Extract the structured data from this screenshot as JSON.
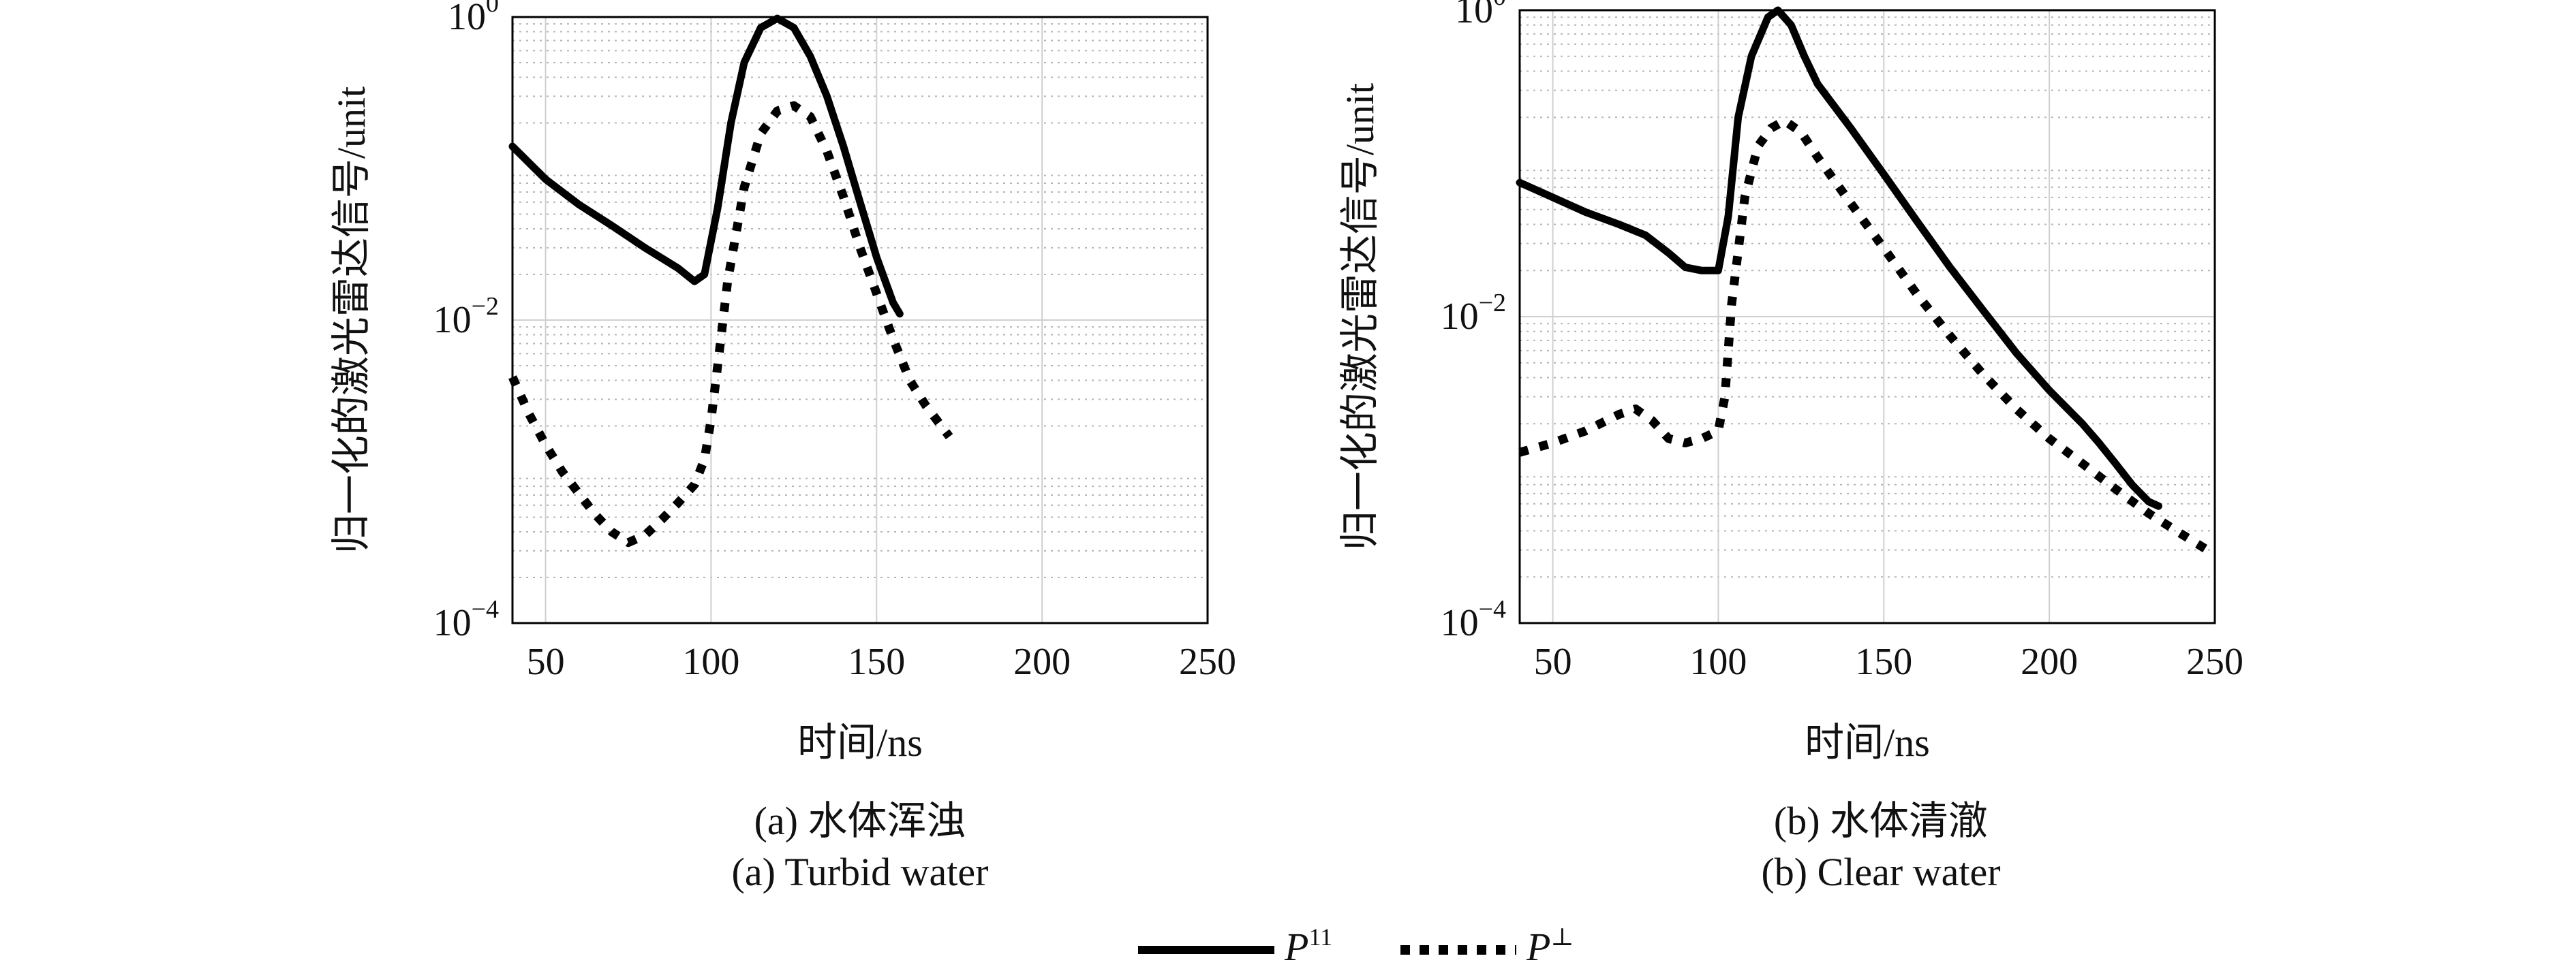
{
  "legend": {
    "entries": [
      {
        "name": "P",
        "sup": "11",
        "style": "solid"
      },
      {
        "name": "P",
        "sup": "⊥",
        "style": "dotted"
      }
    ]
  },
  "chart_data": [
    {
      "type": "line",
      "panel": "a",
      "caption_cn": "(a) 水体浑浊",
      "caption_en": "(a) Turbid water",
      "xlabel": "时间/ns",
      "ylabel": "归一化的激光雷达信号/unit",
      "xlim": [
        40,
        250
      ],
      "ylim_log10": [
        -4,
        0
      ],
      "yscale": "log",
      "grid": true,
      "xticks": [
        50,
        100,
        150,
        200,
        250
      ],
      "yticks": [
        {
          "base": "10",
          "exp": "0",
          "log10": 0
        },
        {
          "base": "10",
          "exp": "−2",
          "log10": -2
        },
        {
          "base": "10",
          "exp": "−4",
          "log10": -4
        }
      ],
      "series": [
        {
          "name": "P11",
          "style": "solid",
          "x": [
            40,
            50,
            60,
            70,
            80,
            90,
            95,
            98,
            102,
            106,
            110,
            115,
            120,
            125,
            130,
            135,
            140,
            145,
            150,
            155,
            157
          ],
          "y": [
            0.14,
            0.085,
            0.058,
            0.042,
            0.03,
            0.022,
            0.018,
            0.02,
            0.055,
            0.2,
            0.5,
            0.85,
            0.98,
            0.85,
            0.55,
            0.3,
            0.14,
            0.06,
            0.026,
            0.013,
            0.011
          ]
        },
        {
          "name": "P⊥",
          "style": "dotted",
          "x": [
            40,
            45,
            50,
            55,
            60,
            65,
            70,
            75,
            80,
            85,
            90,
            95,
            98,
            100,
            102,
            105,
            110,
            115,
            120,
            125,
            130,
            135,
            140,
            145,
            150,
            155,
            160,
            165,
            172
          ],
          "y": [
            0.0042,
            0.0024,
            0.0015,
            0.001,
            0.00072,
            0.00052,
            0.0004,
            0.00034,
            0.00038,
            0.00048,
            0.00062,
            0.00082,
            0.0012,
            0.0022,
            0.005,
            0.018,
            0.075,
            0.17,
            0.24,
            0.26,
            0.22,
            0.13,
            0.065,
            0.03,
            0.015,
            0.0075,
            0.004,
            0.0027,
            0.0017
          ]
        }
      ]
    },
    {
      "type": "line",
      "panel": "b",
      "caption_cn": "(b) 水体清澈",
      "caption_en": "(b) Clear water",
      "xlabel": "时间/ns",
      "ylabel": "归一化的激光雷达信号/unit",
      "xlim": [
        40,
        250
      ],
      "ylim_log10": [
        -4,
        0
      ],
      "yscale": "log",
      "grid": true,
      "xticks": [
        50,
        100,
        150,
        200,
        250
      ],
      "yticks": [
        {
          "base": "10",
          "exp": "0",
          "log10": 0
        },
        {
          "base": "10",
          "exp": "−2",
          "log10": -2
        },
        {
          "base": "10",
          "exp": "−4",
          "log10": -4
        }
      ],
      "series": [
        {
          "name": "P11",
          "style": "solid",
          "x": [
            40,
            50,
            60,
            70,
            78,
            85,
            90,
            95,
            100,
            103,
            106,
            110,
            115,
            118,
            122,
            126,
            130,
            140,
            150,
            160,
            170,
            180,
            190,
            200,
            210,
            215,
            220,
            225,
            230,
            233
          ],
          "y": [
            0.075,
            0.06,
            0.048,
            0.04,
            0.034,
            0.026,
            0.021,
            0.02,
            0.02,
            0.045,
            0.2,
            0.5,
            0.9,
            1.0,
            0.8,
            0.5,
            0.33,
            0.17,
            0.085,
            0.042,
            0.021,
            0.011,
            0.0058,
            0.0033,
            0.002,
            0.0015,
            0.0011,
            0.0008,
            0.00062,
            0.00058
          ]
        },
        {
          "name": "P⊥",
          "style": "dotted",
          "x": [
            40,
            50,
            60,
            70,
            75,
            80,
            85,
            90,
            95,
            100,
            102,
            104,
            108,
            112,
            116,
            120,
            125,
            130,
            140,
            150,
            160,
            170,
            180,
            190,
            200,
            210,
            220,
            230,
            240,
            250
          ],
          "y": [
            0.0013,
            0.0015,
            0.0018,
            0.0023,
            0.0025,
            0.0021,
            0.0016,
            0.0015,
            0.0016,
            0.0018,
            0.003,
            0.012,
            0.06,
            0.13,
            0.17,
            0.19,
            0.16,
            0.11,
            0.055,
            0.028,
            0.014,
            0.0075,
            0.0042,
            0.0025,
            0.0016,
            0.0011,
            0.00075,
            0.00052,
            0.00038,
            0.00028
          ]
        }
      ]
    }
  ]
}
